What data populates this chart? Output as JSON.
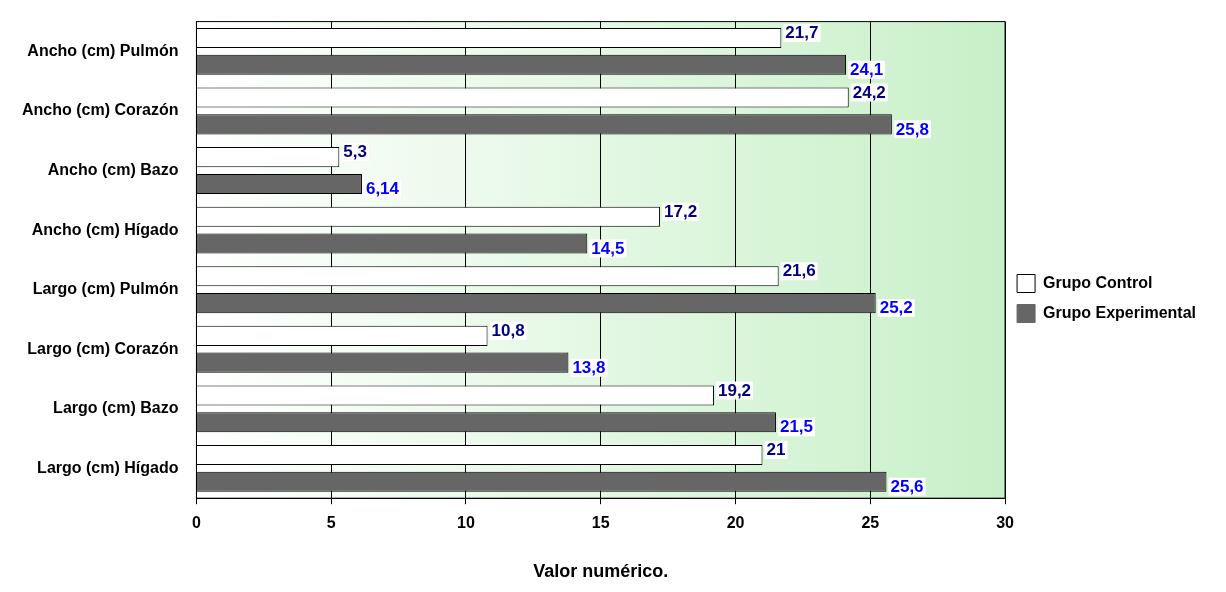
{
  "chart_data": {
    "type": "bar",
    "orientation": "horizontal",
    "xlabel": "Valor numérico.",
    "categories": [
      "Ancho (cm) Pulmón",
      "Ancho (cm) Corazón",
      "Ancho (cm) Bazo",
      "Ancho (cm) Hígado",
      "Largo (cm) Pulmón",
      "Largo (cm) Corazón",
      "Largo (cm) Bazo",
      "Largo (cm) Hígado"
    ],
    "series": [
      {
        "name": "Grupo Control",
        "color": "#ffffff",
        "values": [
          21.7,
          24.2,
          5.3,
          17.2,
          21.6,
          10.8,
          19.2,
          21
        ],
        "value_labels": [
          "21,7",
          "24,2",
          "5,3",
          "17,2",
          "21,6",
          "10,8",
          "19,2",
          "21"
        ]
      },
      {
        "name": "Grupo Experimental",
        "color": "#666666",
        "values": [
          24.1,
          25.8,
          6.14,
          14.5,
          25.2,
          13.8,
          21.5,
          25.6
        ],
        "value_labels": [
          "24,1",
          "25,8",
          "6,14",
          "14,5",
          "25,2",
          "13,8",
          "21,5",
          "25,6"
        ]
      }
    ],
    "xlim": [
      0,
      30
    ],
    "xticks": [
      0,
      5,
      10,
      15,
      20,
      25,
      30
    ],
    "grid": "x",
    "legend": "right"
  }
}
